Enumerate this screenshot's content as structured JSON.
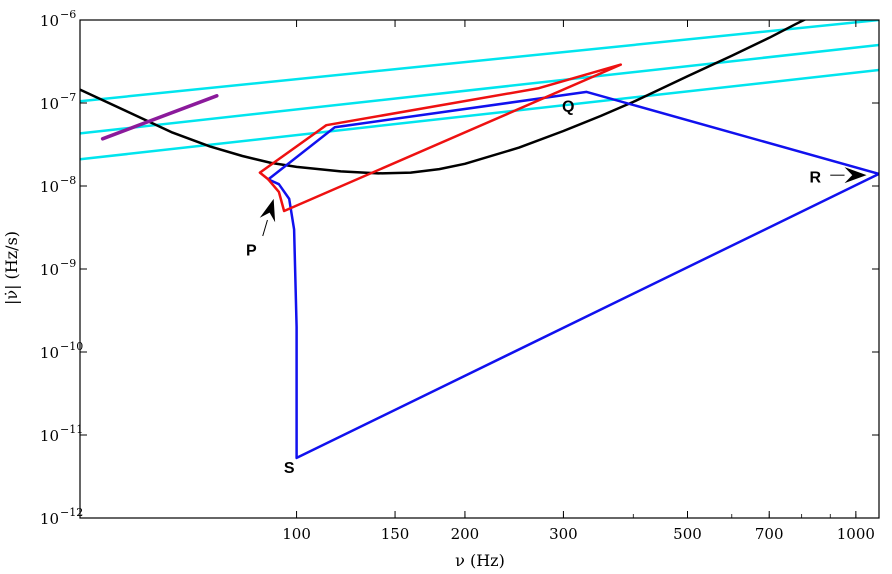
{
  "chart_data": {
    "type": "line",
    "title": "",
    "xlabel": "ν (Hz)",
    "ylabel": "|ν̇| (Hz/s)",
    "x_scale": "log",
    "y_scale": "log",
    "xlim": [
      41,
      1100
    ],
    "ylim": [
      1e-12,
      1e-06
    ],
    "grid": false,
    "x_ticks": [
      {
        "value": 100,
        "label": "100"
      },
      {
        "value": 150,
        "label": "150"
      },
      {
        "value": 200,
        "label": "200"
      },
      {
        "value": 300,
        "label": "300"
      },
      {
        "value": 500,
        "label": "500"
      },
      {
        "value": 700,
        "label": "700"
      },
      {
        "value": 1000,
        "label": "1000"
      }
    ],
    "x_minor_ticks": [
      200,
      300,
      400,
      500,
      600,
      700,
      800,
      900,
      1000
    ],
    "y_ticks": [
      {
        "value": 1e-12,
        "label": "10",
        "exp": "−12"
      },
      {
        "value": 1e-11,
        "label": "10",
        "exp": "−11"
      },
      {
        "value": 1e-10,
        "label": "10",
        "exp": "−10"
      },
      {
        "value": 1e-09,
        "label": "10",
        "exp": "−9"
      },
      {
        "value": 1e-08,
        "label": "10",
        "exp": "−8"
      },
      {
        "value": 1e-07,
        "label": "10",
        "exp": "−7"
      },
      {
        "value": 1e-06,
        "label": "10",
        "exp": "−6"
      }
    ],
    "series": [
      {
        "key": "cyan-upper",
        "color": "#00e5ee",
        "width": 2.5,
        "points": [
          [
            41,
            1.05e-07
          ],
          [
            1100,
            1e-06
          ]
        ]
      },
      {
        "key": "cyan-middle",
        "color": "#00e5ee",
        "width": 2.5,
        "points": [
          [
            41,
            4.3e-08
          ],
          [
            1100,
            5e-07
          ]
        ]
      },
      {
        "key": "cyan-lower",
        "color": "#00e5ee",
        "width": 2.5,
        "points": [
          [
            41,
            2.1e-08
          ],
          [
            1100,
            2.5e-07
          ]
        ]
      },
      {
        "key": "black-curve",
        "color": "#000000",
        "width": 2.5,
        "points": [
          [
            41,
            1.45e-07
          ],
          [
            50,
            7.8e-08
          ],
          [
            60,
            4.4e-08
          ],
          [
            70,
            3e-08
          ],
          [
            80,
            2.3e-08
          ],
          [
            90,
            1.9e-08
          ],
          [
            100,
            1.7e-08
          ],
          [
            120,
            1.5e-08
          ],
          [
            140,
            1.42e-08
          ],
          [
            160,
            1.45e-08
          ],
          [
            180,
            1.6e-08
          ],
          [
            200,
            1.85e-08
          ],
          [
            250,
            2.9e-08
          ],
          [
            300,
            4.6e-08
          ],
          [
            350,
            7e-08
          ],
          [
            400,
            1.03e-07
          ],
          [
            500,
            2.1e-07
          ],
          [
            600,
            3.7e-07
          ],
          [
            700,
            6.1e-07
          ],
          [
            780,
            8.9e-07
          ],
          [
            820,
            1.05e-06
          ]
        ]
      },
      {
        "key": "purple-segment",
        "color": "#8b1a9b",
        "width": 3.5,
        "points": [
          [
            45,
            3.7e-08
          ],
          [
            72,
            1.22e-07
          ]
        ]
      },
      {
        "key": "blue-track",
        "color": "#1111ee",
        "width": 2.5,
        "points": [
          [
            89,
            1.2e-08
          ],
          [
            117,
            5.1e-08
          ],
          [
            330,
            1.36e-07
          ],
          [
            1100,
            1.4e-08
          ],
          [
            100,
            5.3e-12
          ],
          [
            100,
            2e-10
          ],
          [
            99,
            3e-09
          ],
          [
            97,
            7e-09
          ],
          [
            93,
            1.05e-08
          ],
          [
            89,
            1.2e-08
          ]
        ]
      },
      {
        "key": "red-track",
        "color": "#ee1111",
        "width": 2.5,
        "points": [
          [
            86,
            1.45e-08
          ],
          [
            113,
            5.4e-08
          ],
          [
            270,
            1.5e-07
          ],
          [
            380,
            2.9e-07
          ],
          [
            95,
            5e-09
          ],
          [
            93,
            8.5e-09
          ],
          [
            89,
            1.2e-08
          ],
          [
            86,
            1.45e-08
          ]
        ]
      }
    ],
    "annotations": [
      {
        "text": "P",
        "x": 83,
        "y": 1.45e-09
      },
      {
        "text": "Q",
        "x": 306,
        "y": 7.9e-08
      },
      {
        "text": "R",
        "x": 846,
        "y": 1.1e-08
      },
      {
        "text": "S",
        "x": 97,
        "y": 3.5e-12
      }
    ],
    "arrows": [
      {
        "from": [
          87,
          2.5e-09
        ],
        "to": [
          91,
          7e-09
        ]
      },
      {
        "from": [
          900,
          1.35e-08
        ],
        "to": [
          1045,
          1.35e-08
        ]
      }
    ]
  }
}
